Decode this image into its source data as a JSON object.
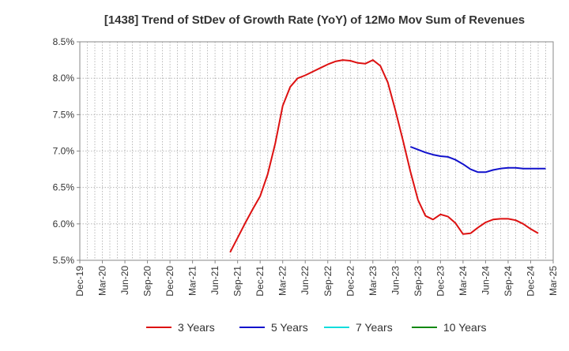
{
  "chart_data": {
    "type": "line",
    "title": "[1438]  Trend of StDev of Growth Rate (YoY) of 12Mo Mov Sum of Revenues",
    "xlabel": "",
    "ylabel": "",
    "ylim": [
      5.5,
      8.5
    ],
    "y_ticks": [
      5.5,
      6.0,
      6.5,
      7.0,
      7.5,
      8.0,
      8.5
    ],
    "y_tick_labels": [
      "5.5%",
      "6.0%",
      "6.5%",
      "7.0%",
      "7.5%",
      "8.0%",
      "8.5%"
    ],
    "x_tick_labels": [
      "Dec-19",
      "Mar-20",
      "Jun-20",
      "Sep-20",
      "Dec-20",
      "Mar-21",
      "Jun-21",
      "Sep-21",
      "Dec-21",
      "Mar-22",
      "Jun-22",
      "Sep-22",
      "Dec-22",
      "Mar-23",
      "Jun-23",
      "Sep-23",
      "Dec-23",
      "Mar-24",
      "Jun-24",
      "Sep-24",
      "Dec-24",
      "Mar-25"
    ],
    "x_start": "Dec-19",
    "x_months_total": 63,
    "grid": true,
    "legend_position": "bottom",
    "series": [
      {
        "name": "3 Years",
        "color": "#dd1111",
        "start_month_index": 20,
        "values": [
          5.61,
          5.81,
          6.01,
          6.2,
          6.38,
          6.68,
          7.1,
          7.62,
          7.88,
          8.0,
          8.04,
          8.09,
          8.14,
          8.19,
          8.23,
          8.25,
          8.24,
          8.21,
          8.2,
          8.25,
          8.17,
          7.94,
          7.56,
          7.15,
          6.72,
          6.33,
          6.11,
          6.06,
          6.13,
          6.1,
          6.01,
          5.86,
          5.87,
          5.95,
          6.02,
          6.06,
          6.07,
          6.07,
          6.05,
          6.0,
          5.93,
          5.87
        ]
      },
      {
        "name": "5 Years",
        "color": "#1111cc",
        "start_month_index": 44,
        "values": [
          7.06,
          7.02,
          6.98,
          6.95,
          6.93,
          6.92,
          6.88,
          6.82,
          6.75,
          6.71,
          6.71,
          6.74,
          6.76,
          6.77,
          6.77,
          6.76,
          6.76,
          6.76,
          6.76
        ]
      },
      {
        "name": "7 Years",
        "color": "#11dddd",
        "start_month_index": null,
        "values": []
      },
      {
        "name": "10 Years",
        "color": "#118811",
        "start_month_index": null,
        "values": []
      }
    ]
  }
}
